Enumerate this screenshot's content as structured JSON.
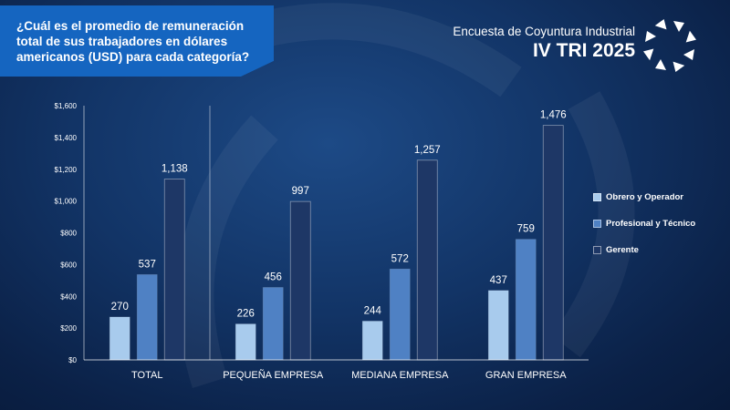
{
  "header": {
    "question": "¿Cuál es el promedio de remuneración total de sus trabajadores en dólares americanos (USD) para cada categoría?",
    "survey_name": "Encuesta de Coyuntura Industrial",
    "period": "IV TRI 2025",
    "logo_icon": "circular-arrows-logo-icon"
  },
  "colors": {
    "question_box": "#1565c0",
    "series": [
      "#a8cbed",
      "#4f81c4",
      "#1e3766"
    ]
  },
  "chart_data": {
    "type": "bar",
    "title": "",
    "xlabel": "",
    "ylabel": "",
    "categories": [
      "TOTAL",
      "PEQUEÑA EMPRESA",
      "MEDIANA EMPRESA",
      "GRAN EMPRESA"
    ],
    "series": [
      {
        "name": "Obrero y Operador",
        "values": [
          270,
          226,
          244,
          437
        ]
      },
      {
        "name": "Profesional  y Técnico",
        "values": [
          537,
          456,
          572,
          759
        ]
      },
      {
        "name": "Gerente",
        "values": [
          1138,
          997,
          1257,
          1476
        ]
      }
    ],
    "ylim": [
      0,
      1600
    ],
    "yticks": [
      0,
      200,
      400,
      600,
      800,
      1000,
      1200,
      1400,
      1600
    ],
    "ytick_labels": [
      "$0",
      "$200",
      "$400",
      "$600",
      "$800",
      "$1,000",
      "$1,200",
      "$1,400",
      "$1,600"
    ],
    "data_labels": [
      [
        "270",
        "226",
        "244",
        "437"
      ],
      [
        "537",
        "456",
        "572",
        "759"
      ],
      [
        "1,138",
        "997",
        "1,257",
        "1,476"
      ]
    ],
    "grid": false,
    "legend_position": "right"
  }
}
